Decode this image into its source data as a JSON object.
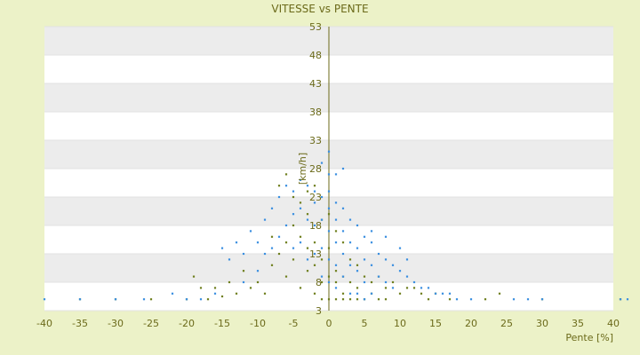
{
  "chart_data": {
    "type": "scatter",
    "title": "VITESSE vs PENTE",
    "xlabel": "Pente [%]",
    "ylabel": "[km/h]",
    "xlim": [
      -40,
      40
    ],
    "ylim": [
      3,
      53
    ],
    "x_ticks": [
      -40,
      -35,
      -30,
      -25,
      -20,
      -15,
      -10,
      -5,
      0,
      5,
      10,
      15,
      20,
      25,
      30,
      35,
      40
    ],
    "y_ticks": [
      3,
      8,
      13,
      18,
      23,
      28,
      33,
      38,
      43,
      48,
      53
    ],
    "grid": "horizontal bands",
    "legend": "none",
    "series": [
      {
        "color": "#6f7f1e",
        "points": [
          [
            -15,
            5.5
          ],
          [
            -13,
            6
          ],
          [
            -11,
            7
          ],
          [
            -10,
            8
          ],
          [
            -9,
            6
          ],
          [
            -8,
            11
          ],
          [
            -7,
            13
          ],
          [
            -6,
            15
          ],
          [
            -6,
            9
          ],
          [
            -5,
            18
          ],
          [
            -5,
            12
          ],
          [
            -4,
            22
          ],
          [
            -4,
            7
          ],
          [
            -3,
            20
          ],
          [
            -3,
            24
          ],
          [
            -3,
            10
          ],
          [
            -2,
            25
          ],
          [
            -2,
            15
          ],
          [
            -2,
            6
          ],
          [
            -1,
            19
          ],
          [
            -1,
            12
          ],
          [
            -1,
            5
          ],
          [
            0,
            20
          ],
          [
            0,
            14
          ],
          [
            0,
            5
          ],
          [
            1,
            17
          ],
          [
            1,
            10
          ],
          [
            1,
            5
          ],
          [
            2,
            15
          ],
          [
            2,
            9
          ],
          [
            2,
            6
          ],
          [
            3,
            12
          ],
          [
            3,
            8
          ],
          [
            4,
            11
          ],
          [
            4,
            7
          ],
          [
            5,
            9
          ],
          [
            6,
            8
          ],
          [
            7,
            9
          ],
          [
            8,
            7
          ],
          [
            9,
            8
          ],
          [
            10,
            6
          ],
          [
            11,
            7
          ],
          [
            12,
            7
          ],
          [
            13,
            6
          ],
          [
            14,
            5
          ],
          [
            15,
            6
          ],
          [
            17,
            5
          ],
          [
            -18,
            7
          ],
          [
            -20,
            5
          ],
          [
            -19,
            9
          ],
          [
            -12,
            10
          ],
          [
            -14,
            8
          ],
          [
            -16,
            7
          ],
          [
            -17,
            5
          ],
          [
            -8,
            16
          ],
          [
            -7,
            25
          ],
          [
            -6,
            27
          ],
          [
            -5,
            23
          ],
          [
            -4,
            16
          ],
          [
            -3,
            14
          ],
          [
            -2,
            11
          ],
          [
            -1,
            8
          ],
          [
            0,
            9
          ],
          [
            1,
            8
          ],
          [
            2,
            5
          ],
          [
            3,
            5
          ],
          [
            4,
            5
          ],
          [
            5,
            5
          ],
          [
            6,
            6
          ],
          [
            7,
            5
          ],
          [
            8,
            5
          ],
          [
            -35,
            5
          ],
          [
            -30,
            5
          ],
          [
            -25,
            5
          ],
          [
            22,
            5
          ],
          [
            24,
            6
          ],
          [
            30,
            5
          ],
          [
            41,
            5
          ]
        ]
      },
      {
        "color": "#3b8fe0",
        "points": [
          [
            -15,
            14
          ],
          [
            -14,
            12
          ],
          [
            -13,
            15
          ],
          [
            -12,
            13
          ],
          [
            -11,
            17
          ],
          [
            -10,
            15
          ],
          [
            -10,
            10
          ],
          [
            -9,
            19
          ],
          [
            -9,
            13
          ],
          [
            -8,
            21
          ],
          [
            -8,
            14
          ],
          [
            -7,
            23
          ],
          [
            -7,
            16
          ],
          [
            -6,
            25
          ],
          [
            -6,
            18
          ],
          [
            -5,
            24
          ],
          [
            -5,
            20
          ],
          [
            -5,
            14
          ],
          [
            -4,
            26
          ],
          [
            -4,
            21
          ],
          [
            -4,
            15
          ],
          [
            -3,
            25
          ],
          [
            -3,
            19
          ],
          [
            -3,
            12
          ],
          [
            -2,
            24
          ],
          [
            -2,
            22
          ],
          [
            -2,
            18
          ],
          [
            -2,
            13
          ],
          [
            -1,
            23
          ],
          [
            -1,
            19
          ],
          [
            -1,
            14
          ],
          [
            -1,
            9
          ],
          [
            0,
            31
          ],
          [
            0,
            24
          ],
          [
            0,
            21
          ],
          [
            0,
            17
          ],
          [
            0,
            12
          ],
          [
            0,
            8
          ],
          [
            1,
            22
          ],
          [
            1,
            19
          ],
          [
            1,
            15
          ],
          [
            1,
            11
          ],
          [
            1,
            7
          ],
          [
            2,
            21
          ],
          [
            2,
            17
          ],
          [
            2,
            13
          ],
          [
            2,
            9
          ],
          [
            3,
            19
          ],
          [
            3,
            15
          ],
          [
            3,
            11
          ],
          [
            4,
            18
          ],
          [
            4,
            14
          ],
          [
            4,
            10
          ],
          [
            5,
            16
          ],
          [
            5,
            12
          ],
          [
            5,
            8
          ],
          [
            6,
            15
          ],
          [
            6,
            11
          ],
          [
            7,
            13
          ],
          [
            7,
            9
          ],
          [
            8,
            12
          ],
          [
            8,
            8
          ],
          [
            9,
            11
          ],
          [
            9,
            7
          ],
          [
            10,
            10
          ],
          [
            11,
            9
          ],
          [
            12,
            8
          ],
          [
            13,
            7
          ],
          [
            14,
            7
          ],
          [
            15,
            6
          ],
          [
            16,
            6
          ],
          [
            17,
            6
          ],
          [
            18,
            5
          ],
          [
            20,
            5
          ],
          [
            -20,
            5
          ],
          [
            -22,
            6
          ],
          [
            -26,
            5
          ],
          [
            -30,
            5
          ],
          [
            -35,
            5
          ],
          [
            -40,
            5
          ],
          [
            26,
            5
          ],
          [
            28,
            5
          ],
          [
            30,
            5
          ],
          [
            41,
            5
          ],
          [
            42,
            5
          ],
          [
            2,
            28
          ],
          [
            1,
            27
          ],
          [
            -1,
            29
          ],
          [
            0,
            27
          ],
          [
            6,
            17
          ],
          [
            8,
            16
          ],
          [
            10,
            14
          ],
          [
            11,
            12
          ],
          [
            -12,
            8
          ],
          [
            -16,
            6
          ],
          [
            -18,
            5
          ],
          [
            3,
            6
          ],
          [
            4,
            6
          ],
          [
            5,
            5
          ],
          [
            6,
            6
          ]
        ]
      }
    ]
  }
}
